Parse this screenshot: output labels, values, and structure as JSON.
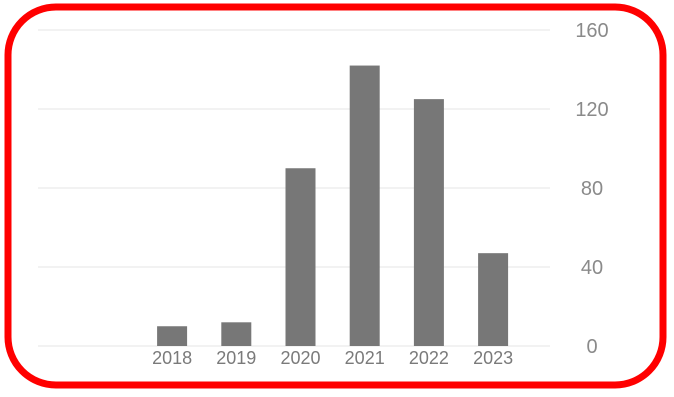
{
  "chart_data": {
    "type": "bar",
    "categories": [
      "2018",
      "2019",
      "2020",
      "2021",
      "2022",
      "2023"
    ],
    "values": [
      10,
      12,
      90,
      142,
      125,
      47
    ],
    "title": "",
    "xlabel": "",
    "ylabel": "",
    "ylim": [
      0,
      160
    ],
    "yticks": [
      "0",
      "40",
      "80",
      "120",
      "160"
    ],
    "y_axis_side": "right",
    "grid": true,
    "legend": "none",
    "bar_color": "#777777",
    "grid_color": "#e6e6e6",
    "border_color": "#ff0000"
  }
}
